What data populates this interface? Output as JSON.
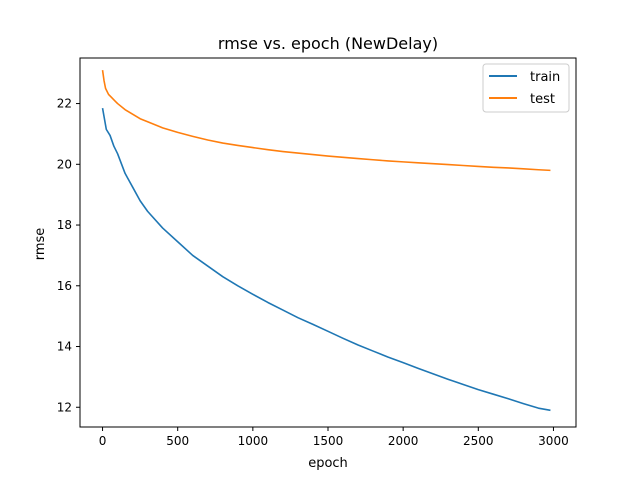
{
  "chart_data": {
    "type": "line",
    "title": "rmse vs. epoch (NewDelay)",
    "xlabel": "epoch",
    "ylabel": "rmse",
    "xlim": [
      -150,
      3150
    ],
    "ylim": [
      11.35,
      23.5
    ],
    "xticks": [
      0,
      500,
      1000,
      1500,
      2000,
      2500,
      3000
    ],
    "yticks": [
      12,
      14,
      16,
      18,
      20,
      22
    ],
    "grid": false,
    "legend_position": "top-right",
    "series": [
      {
        "name": "train",
        "color": "#1f77b4",
        "x": [
          0,
          25,
          50,
          75,
          100,
          150,
          200,
          250,
          300,
          400,
          500,
          600,
          700,
          800,
          900,
          1000,
          1100,
          1200,
          1300,
          1400,
          1500,
          1600,
          1700,
          1800,
          1900,
          2000,
          2100,
          2200,
          2300,
          2400,
          2500,
          2600,
          2700,
          2800,
          2900,
          2980
        ],
        "y": [
          21.85,
          21.15,
          20.95,
          20.6,
          20.35,
          19.7,
          19.25,
          18.8,
          18.45,
          17.9,
          17.45,
          17.0,
          16.65,
          16.3,
          16.0,
          15.72,
          15.45,
          15.2,
          14.95,
          14.73,
          14.5,
          14.27,
          14.05,
          13.85,
          13.65,
          13.47,
          13.28,
          13.1,
          12.92,
          12.75,
          12.58,
          12.43,
          12.28,
          12.12,
          11.97,
          11.9
        ]
      },
      {
        "name": "test",
        "color": "#ff7f0e",
        "x": [
          0,
          10,
          20,
          40,
          60,
          80,
          100,
          150,
          200,
          250,
          300,
          400,
          500,
          600,
          700,
          800,
          900,
          1000,
          1100,
          1200,
          1300,
          1400,
          1500,
          1600,
          1700,
          1800,
          1900,
          2000,
          2100,
          2200,
          2300,
          2400,
          2500,
          2600,
          2700,
          2800,
          2900,
          2980
        ],
        "y": [
          23.1,
          22.75,
          22.5,
          22.3,
          22.2,
          22.1,
          22.0,
          21.8,
          21.65,
          21.5,
          21.4,
          21.2,
          21.05,
          20.92,
          20.8,
          20.7,
          20.62,
          20.55,
          20.48,
          20.42,
          20.37,
          20.32,
          20.27,
          20.23,
          20.19,
          20.15,
          20.11,
          20.08,
          20.05,
          20.02,
          19.99,
          19.96,
          19.93,
          19.9,
          19.88,
          19.85,
          19.82,
          19.8
        ]
      }
    ]
  }
}
